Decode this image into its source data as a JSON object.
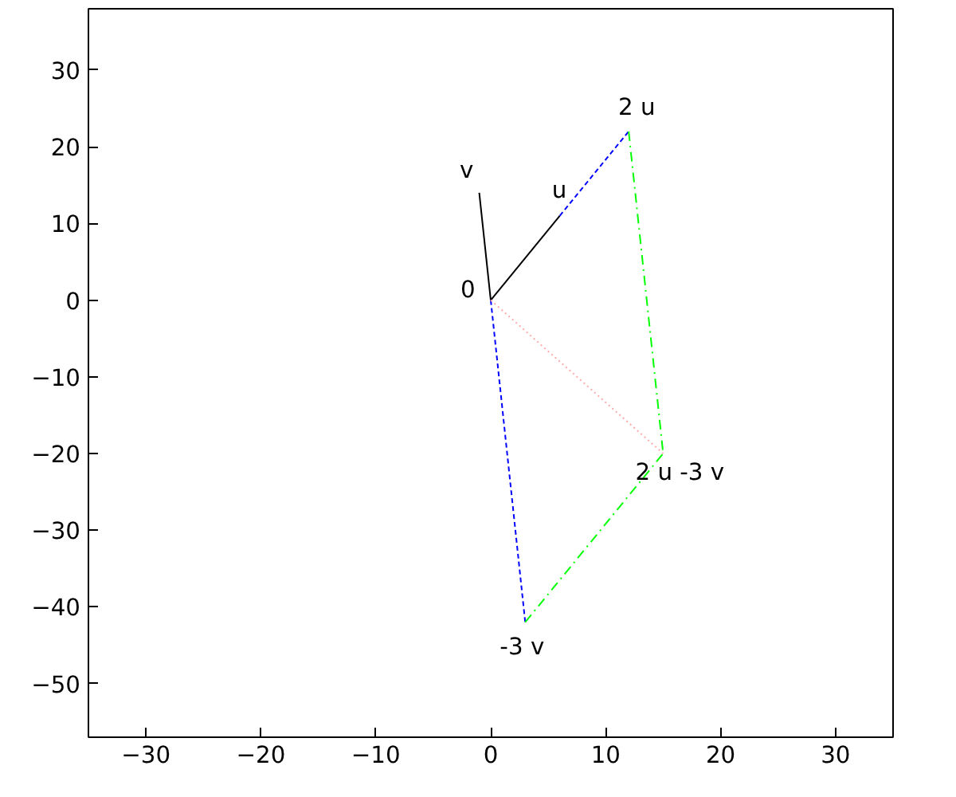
{
  "chart_data": {
    "type": "line",
    "xlim": [
      -35,
      35
    ],
    "ylim": [
      -57,
      38
    ],
    "xticks": [
      -30,
      -20,
      -10,
      0,
      10,
      20,
      30
    ],
    "yticks": [
      -50,
      -40,
      -30,
      -20,
      -10,
      0,
      10,
      20,
      30
    ],
    "grid": false,
    "series": [
      {
        "color": "#000000",
        "x": [
          0,
          6
        ],
        "values": [
          0,
          11
        ],
        "line_style": "solid"
      },
      {
        "color": "#000000",
        "x": [
          0,
          -1
        ],
        "values": [
          0,
          14
        ],
        "line_style": "solid"
      },
      {
        "color": "#0000ff",
        "x": [
          6,
          12
        ],
        "values": [
          11,
          22
        ],
        "line_style": "dashed"
      },
      {
        "color": "#0000ff",
        "x": [
          0,
          3
        ],
        "values": [
          0,
          -42
        ],
        "line_style": "dashed"
      },
      {
        "color": "#00ff00",
        "x": [
          12,
          15
        ],
        "values": [
          22,
          -20
        ],
        "line_style": "dashdot"
      },
      {
        "color": "#00ff00",
        "x": [
          3,
          15
        ],
        "values": [
          -42,
          -20
        ],
        "line_style": "dashdot"
      },
      {
        "color": "#ffaaaa",
        "x": [
          0,
          15
        ],
        "values": [
          0,
          -20
        ],
        "line_style": "dotted"
      }
    ],
    "annotations": [
      {
        "text": "0",
        "x": 0,
        "y": 0
      },
      {
        "text": "u",
        "x": 6,
        "y": 11
      },
      {
        "text": "v",
        "x": -1,
        "y": 14
      },
      {
        "text": "2 u",
        "x": 12,
        "y": 22
      },
      {
        "text": "-3 v",
        "x": 3,
        "y": -42
      },
      {
        "text": "2 u -3 v",
        "x": 15,
        "y": -20
      }
    ]
  }
}
